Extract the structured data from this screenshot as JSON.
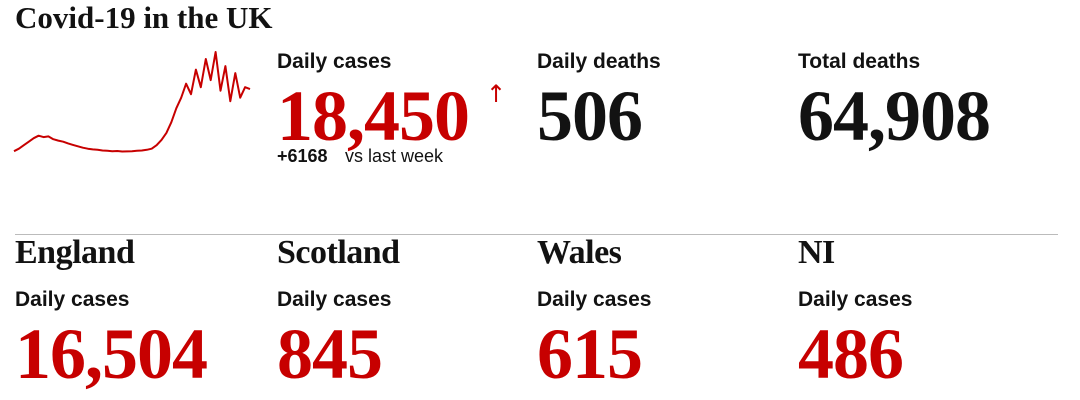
{
  "title": "Covid-19 in the UK",
  "sparkline": {
    "color": "#c70000",
    "values": [
      800,
      1500,
      2500,
      3500,
      4500,
      5200,
      4800,
      5000,
      4200,
      3800,
      3500,
      3000,
      2600,
      2200,
      1800,
      1500,
      1300,
      1200,
      1000,
      900,
      800,
      850,
      700,
      750,
      800,
      900,
      1000,
      1200,
      1500,
      2500,
      4000,
      6000,
      9000,
      13000,
      16000,
      20000,
      17000,
      24000,
      19000,
      27000,
      21000,
      29000,
      18000,
      25000,
      15000,
      23000,
      16000,
      19000,
      18450
    ]
  },
  "summary": [
    {
      "label": "Daily cases",
      "value": "18,450",
      "trend": "↑",
      "change": "+6168",
      "change_note": "vs last week"
    },
    {
      "label": "Daily deaths",
      "value": "506"
    },
    {
      "label": "Total deaths",
      "value": "64,908"
    }
  ],
  "regions": [
    {
      "name": "England",
      "label": "Daily cases",
      "value": "16,504"
    },
    {
      "name": "Scotland",
      "label": "Daily cases",
      "value": "845"
    },
    {
      "name": "Wales",
      "label": "Daily cases",
      "value": "615"
    },
    {
      "name": "NI",
      "label": "Daily cases",
      "value": "486"
    }
  ]
}
